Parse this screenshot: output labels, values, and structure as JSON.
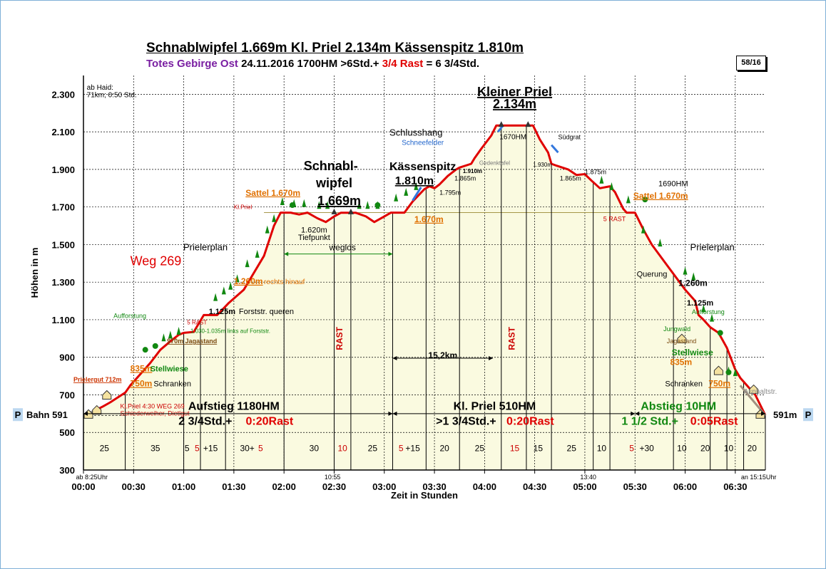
{
  "header": {
    "title": "Schnablwipfel 1.669m Kl. Priel 2.134m Kässenspitz 1.810m",
    "subtitle_region": "Totes Gebirge Ost",
    "subtitle_main": "24.11.2016   1700HM    >6Std.+",
    "subtitle_rast": "3/4 Rast",
    "subtitle_end": "= 6 3/4Std.",
    "badge": "58/16"
  },
  "chart_data": {
    "type": "area",
    "title": "Schnablwipfel 1.669m Kl. Priel 2.134m Kässenspitz 1.810m",
    "xlabel": "Zeit in Stunden",
    "ylabel": "Höhen in m",
    "xlim": [
      0,
      408
    ],
    "ylim": [
      300,
      2400
    ],
    "yticks": [
      300,
      500,
      700,
      900,
      1100,
      1300,
      1500,
      1700,
      1900,
      2100,
      2300
    ],
    "ytick_labels": [
      "300",
      "500",
      "700",
      "900",
      "1.100",
      "1.300",
      "1.500",
      "1.700",
      "1.900",
      "2.100",
      "2.300"
    ],
    "xticks": [
      0,
      30,
      60,
      90,
      120,
      150,
      180,
      210,
      240,
      270,
      300,
      330,
      360,
      390
    ],
    "xtick_labels": [
      "00:00",
      "00:30",
      "01:00",
      "01:30",
      "02:00",
      "02:30",
      "03:00",
      "03:30",
      "04:00",
      "04:30",
      "05:00",
      "05:30",
      "06:00",
      "06:30"
    ],
    "grid": true,
    "colors": {
      "profile": "#e00000",
      "fill": "#fafae0",
      "trees": "#118811",
      "rast": "#cc0000"
    },
    "x": [
      0,
      1,
      3,
      7,
      12,
      16,
      25,
      28,
      32,
      40,
      46,
      52,
      57,
      60,
      66,
      72,
      80,
      87,
      96,
      108,
      114,
      118,
      121,
      124,
      129,
      134,
      140,
      145,
      150,
      154,
      158,
      163,
      169,
      174,
      180,
      184,
      188,
      192,
      197,
      204,
      207,
      210,
      213,
      218,
      223,
      225,
      232,
      234,
      238,
      244,
      247,
      250,
      253,
      259,
      266,
      269,
      273,
      278,
      280,
      283,
      290,
      295,
      300,
      304,
      309,
      315,
      318,
      323,
      325,
      330,
      335,
      340,
      350,
      360,
      366,
      368,
      371,
      375,
      380,
      385,
      390,
      393,
      397,
      402,
      408
    ],
    "y": [
      591,
      591,
      600,
      617,
      640,
      660,
      712,
      750,
      790,
      870,
      940,
      985,
      1020,
      1030,
      1035,
      1125,
      1125,
      1190,
      1260,
      1440,
      1600,
      1670,
      1670,
      1670,
      1660,
      1670,
      1640,
      1620,
      1650,
      1669,
      1669,
      1669,
      1650,
      1620,
      1650,
      1670,
      1670,
      1670,
      1730,
      1795,
      1810,
      1800,
      1820,
      1865,
      1900,
      1910,
      1930,
      1960,
      2010,
      2080,
      2134,
      2134,
      2134,
      2134,
      2134,
      2134,
      2060,
      1990,
      1930,
      1920,
      1900,
      1870,
      1875,
      1840,
      1800,
      1810,
      1780,
      1690,
      1670,
      1670,
      1580,
      1500,
      1380,
      1260,
      1200,
      1125,
      1100,
      1060,
      1030,
      950,
      835,
      790,
      750,
      700,
      591
    ],
    "annotations": [
      {
        "text": "Kleiner Priel",
        "t": 258,
        "alt": 2290
      },
      {
        "text": "2.134m",
        "t": 258,
        "alt": 2225
      },
      {
        "text": "Schnabl-",
        "t": 148,
        "alt": 1895
      },
      {
        "text": "wipfel",
        "t": 150,
        "alt": 1805
      },
      {
        "text": "1.669m",
        "t": 153,
        "alt": 1710
      },
      {
        "text": "Kässenspitz",
        "t": 203,
        "alt": 1895
      },
      {
        "text": "1.810m",
        "t": 198,
        "alt": 1820
      },
      {
        "text": "Schlusshang",
        "t": 199,
        "alt": 2080
      },
      {
        "text": "Schneefelder",
        "t": 203,
        "alt": 2030
      },
      {
        "text": "1670HM",
        "t": 257,
        "alt": 2060
      },
      {
        "text": "Südgrat",
        "t": 284,
        "alt": 2060
      },
      {
        "text": "Gedenktafel",
        "t": 246,
        "alt": 1925
      },
      {
        "text": "1.930m",
        "t": 269,
        "alt": 1915
      },
      {
        "text": "1.910m",
        "t": 227,
        "alt": 1880
      },
      {
        "text": "1.875m",
        "t": 300,
        "alt": 1875
      },
      {
        "text": "1.865m",
        "t": 222,
        "alt": 1840
      },
      {
        "text": "1.865m",
        "t": 285,
        "alt": 1840
      },
      {
        "text": "1.795m",
        "t": 213,
        "alt": 1765
      },
      {
        "text": "1690HM",
        "t": 344,
        "alt": 1810
      },
      {
        "text": "Sattel 1.670m",
        "t": 97,
        "alt": 1760
      },
      {
        "text": "Sattel 1.670m",
        "t": 329,
        "alt": 1745
      },
      {
        "text": "Kl.Priel",
        "t": 90,
        "alt": 1690
      },
      {
        "text": "1.670m",
        "t": 198,
        "alt": 1620
      },
      {
        "text": "5 RAST",
        "t": 311,
        "alt": 1625
      },
      {
        "text": "1.620m",
        "t": 138,
        "alt": 1565
      },
      {
        "text": "Tiefpunkt",
        "t": 138,
        "alt": 1525
      },
      {
        "text": "weglos",
        "t": 155,
        "alt": 1470
      },
      {
        "text": "Prielerplan",
        "t": 73,
        "alt": 1470
      },
      {
        "text": "Prielerplan",
        "t": 363,
        "alt": 1470
      },
      {
        "text": "Weg 269",
        "t": 28,
        "alt": 1390
      },
      {
        "text": "1.260m",
        "t": 90,
        "alt": 1290
      },
      {
        "text": "rechts hinauf",
        "t": 108,
        "alt": 1290
      },
      {
        "text": "Querung",
        "t": 331,
        "alt": 1330
      },
      {
        "text": "1.260m",
        "t": 356,
        "alt": 1280
      },
      {
        "text": "1.125m",
        "t": 75,
        "alt": 1130
      },
      {
        "text": "Forststr. queren",
        "t": 93,
        "alt": 1130
      },
      {
        "text": "1.125m",
        "t": 361,
        "alt": 1175
      },
      {
        "text": "Aufforstung",
        "t": 18,
        "alt": 1110
      },
      {
        "text": "Aufforstung",
        "t": 364,
        "alt": 1130
      },
      {
        "text": "5 RAST",
        "t": 62,
        "alt": 1075
      },
      {
        "text": "1.030-1.035m links auf Forststr.",
        "t": 64,
        "alt": 1030
      },
      {
        "text": "Jungwald",
        "t": 347,
        "alt": 1040
      },
      {
        "text": "970m Jagastand",
        "t": 50,
        "alt": 975
      },
      {
        "text": "Jagastand",
        "t": 349,
        "alt": 975
      },
      {
        "text": "15,2km",
        "t": 215,
        "alt": 895
      },
      {
        "text": "Stellwiese",
        "t": 352,
        "alt": 910
      },
      {
        "text": "835m",
        "t": 351,
        "alt": 860
      },
      {
        "text": "835m",
        "t": 28,
        "alt": 825
      },
      {
        "text": "Stellwiese",
        "t": 40,
        "alt": 825
      },
      {
        "text": "Prielergut 712m",
        "t": -6,
        "alt": 770
      },
      {
        "text": "750m",
        "t": 28,
        "alt": 745
      },
      {
        "text": "Schranken",
        "t": 42,
        "alt": 745
      },
      {
        "text": "Schranken",
        "t": 348,
        "alt": 745
      },
      {
        "text": "750m",
        "t": 374,
        "alt": 745
      },
      {
        "text": "Asphaltstr.",
        "t": 395,
        "alt": 705
      },
      {
        "text": "Kl.Priel 4:30    WEG 269",
        "t": 22,
        "alt": 628
      },
      {
        "text": "Schiederweiher, Dietlgut",
        "t": 22,
        "alt": 590
      },
      {
        "text": "ab Haid:",
        "t": 2,
        "alt": 2325
      },
      {
        "text": "71km; 0:50 Std.",
        "t": 2,
        "alt": 2285
      },
      {
        "text": "RAST",
        "t": 155,
        "alt": 1000
      },
      {
        "text": "RAST",
        "t": 258,
        "alt": 1000
      }
    ],
    "sections": [
      {
        "title": "Aufstieg 1180HM",
        "time": "2 3/4Std.+",
        "rast": "0:20Rast",
        "t": 90,
        "color": "#000000"
      },
      {
        "title": "Kl. Priel 510HM",
        "time": ">1 3/4Std.+",
        "rast": "0:20Rast",
        "t": 246,
        "color": "#000000"
      },
      {
        "title": "Abstieg  10HM",
        "time": "1 1/2 Std.+",
        "rast": "0:05Rast",
        "t": 356,
        "color": "#118811"
      }
    ],
    "dividers": [
      25,
      60,
      70,
      85,
      120,
      150,
      160,
      185,
      205,
      225,
      250,
      265,
      280,
      305,
      315,
      353,
      375,
      385,
      395
    ],
    "segments": [
      {
        "t": 12.5,
        "text": "25",
        "rast": false
      },
      {
        "t": 43,
        "text": "35",
        "rast": false
      },
      {
        "t": 62,
        "text": "5",
        "rast": false
      },
      {
        "t": 68,
        "text": "5",
        "rast": true
      },
      {
        "t": 76,
        "text": "+15",
        "rast": false
      },
      {
        "t": 98,
        "text": "30+",
        "rast": false
      },
      {
        "t": 106,
        "text": "5",
        "rast": true
      },
      {
        "t": 138,
        "text": "30",
        "rast": false
      },
      {
        "t": 155,
        "text": "10",
        "rast": true
      },
      {
        "t": 173,
        "text": "25",
        "rast": false
      },
      {
        "t": 190,
        "text": "5",
        "rast": true
      },
      {
        "t": 197,
        "text": "+15",
        "rast": false
      },
      {
        "t": 216,
        "text": "20",
        "rast": false
      },
      {
        "t": 237,
        "text": "25",
        "rast": false
      },
      {
        "t": 258,
        "text": "15",
        "rast": true
      },
      {
        "t": 272,
        "text": "15",
        "rast": false
      },
      {
        "t": 292,
        "text": "25",
        "rast": false
      },
      {
        "t": 310,
        "text": "10",
        "rast": false
      },
      {
        "t": 328,
        "text": "5",
        "rast": true
      },
      {
        "t": 337,
        "text": "+30",
        "rast": false
      },
      {
        "t": 358,
        "text": "10",
        "rast": false
      },
      {
        "t": 372,
        "text": "20",
        "rast": false
      },
      {
        "t": 386,
        "text": "10",
        "rast": false
      },
      {
        "t": 400,
        "text": "20",
        "rast": false
      }
    ],
    "time_marks": [
      {
        "t": 5,
        "text": "ab 8:25Uhr"
      },
      {
        "t": 149,
        "text": "10:55"
      },
      {
        "t": 302,
        "text": "13:40"
      },
      {
        "t": 404,
        "text": "an 15:15Uhr"
      }
    ],
    "start_label": {
      "p": "P",
      "text": "Bahn  591"
    },
    "end_label": {
      "text": "591m",
      "p": "P"
    },
    "rast_columns": [
      155,
      258
    ]
  }
}
